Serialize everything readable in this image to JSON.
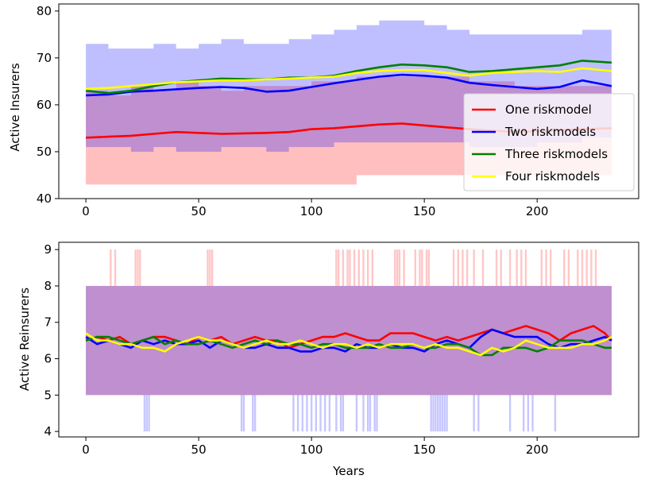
{
  "chart_data": [
    {
      "type": "line",
      "xlabel": "",
      "ylabel": "Active Insurers",
      "xlim": [
        -12,
        245
      ],
      "ylim": [
        40,
        81.5
      ],
      "xticks": [
        0,
        50,
        100,
        150,
        200
      ],
      "yticks": [
        40,
        50,
        60,
        70,
        80
      ],
      "legend_position": "right",
      "series": [
        {
          "name": "One riskmodel",
          "color": "#ff0000",
          "x": [
            0,
            10,
            20,
            30,
            40,
            50,
            60,
            70,
            80,
            90,
            100,
            110,
            120,
            130,
            140,
            150,
            160,
            170,
            180,
            190,
            200,
            210,
            220,
            233
          ],
          "y": [
            53.0,
            53.2,
            53.4,
            53.8,
            54.2,
            54.0,
            53.8,
            53.9,
            54.0,
            54.2,
            54.8,
            55.0,
            55.4,
            55.8,
            56.0,
            55.6,
            55.2,
            54.8,
            54.5,
            54.2,
            54.4,
            54.6,
            54.8,
            55.0
          ],
          "band_lower": [
            43,
            43,
            43,
            43,
            43,
            43,
            43,
            43,
            43,
            43,
            43,
            43,
            45,
            45,
            45,
            45,
            45,
            45,
            45,
            45,
            45,
            45,
            45,
            45
          ],
          "band_upper": [
            63,
            62,
            64,
            63,
            65,
            64,
            63,
            64,
            64,
            64,
            65,
            65,
            66,
            66,
            66,
            66,
            66,
            65,
            65,
            64,
            64,
            64,
            64,
            64
          ]
        },
        {
          "name": "Two riskmodels",
          "color": "#0000ff",
          "x": [
            0,
            10,
            20,
            30,
            40,
            50,
            60,
            70,
            80,
            90,
            100,
            110,
            120,
            130,
            140,
            150,
            160,
            170,
            180,
            190,
            200,
            210,
            220,
            233
          ],
          "y": [
            62.0,
            62.2,
            62.8,
            63.0,
            63.3,
            63.6,
            63.8,
            63.6,
            62.8,
            63.0,
            63.8,
            64.6,
            65.3,
            66.0,
            66.4,
            66.2,
            65.8,
            64.7,
            64.2,
            63.8,
            63.4,
            63.8,
            65.2,
            64.0
          ],
          "band_lower": [
            51,
            51,
            50,
            51,
            50,
            50,
            51,
            51,
            50,
            51,
            51,
            52,
            52,
            52,
            52,
            52,
            52,
            51,
            51,
            51,
            52,
            52,
            53,
            53
          ],
          "band_upper": [
            73,
            72,
            72,
            73,
            72,
            73,
            74,
            73,
            73,
            74,
            75,
            76,
            77,
            78,
            78,
            77,
            76,
            75,
            75,
            75,
            75,
            75,
            76,
            76
          ]
        },
        {
          "name": "Three riskmodels",
          "color": "#008000",
          "x": [
            0,
            10,
            20,
            30,
            40,
            50,
            60,
            70,
            80,
            90,
            100,
            110,
            120,
            130,
            140,
            150,
            160,
            170,
            180,
            190,
            200,
            210,
            220,
            233
          ],
          "y": [
            63.0,
            62.5,
            63.0,
            64.0,
            64.8,
            65.2,
            65.6,
            65.5,
            65.4,
            65.8,
            65.8,
            66.2,
            67.2,
            68.0,
            68.6,
            68.4,
            68.0,
            67.0,
            67.2,
            67.6,
            68.0,
            68.4,
            69.4,
            69.0
          ],
          "band_lower": [],
          "band_upper": []
        },
        {
          "name": "Four riskmodels",
          "color": "#ffff00",
          "x": [
            0,
            10,
            20,
            30,
            40,
            50,
            60,
            70,
            80,
            90,
            100,
            110,
            120,
            130,
            140,
            150,
            160,
            170,
            180,
            190,
            200,
            210,
            220,
            233
          ],
          "y": [
            63.4,
            63.6,
            64.0,
            64.4,
            64.8,
            65.0,
            65.2,
            65.2,
            65.4,
            65.6,
            65.8,
            66.0,
            66.8,
            67.2,
            67.4,
            67.4,
            66.8,
            66.2,
            66.8,
            67.0,
            67.2,
            67.0,
            67.8,
            67.2
          ],
          "band_lower": [],
          "band_upper": []
        }
      ]
    },
    {
      "type": "line",
      "xlabel": "Years",
      "ylabel": "Active Reinsurers",
      "xlim": [
        -12,
        245
      ],
      "ylim": [
        3.85,
        9.2
      ],
      "xticks": [
        0,
        50,
        100,
        150,
        200
      ],
      "yticks": [
        4,
        5,
        6,
        7,
        8,
        9
      ],
      "legend_position": "none",
      "band": {
        "lower": 5,
        "upper": 8,
        "x_start": 0,
        "x_end": 233
      },
      "spikes_up": [
        11,
        13,
        22,
        23,
        24,
        54,
        55,
        56,
        111,
        112,
        114,
        116,
        117,
        119,
        121,
        123,
        125,
        127,
        137,
        138,
        139,
        141,
        146,
        148,
        149,
        151,
        152,
        163,
        165,
        167,
        169,
        172,
        176,
        182,
        184,
        188,
        191,
        193,
        195,
        202,
        204,
        206,
        212,
        214,
        218,
        220,
        222,
        224,
        226
      ],
      "spikes_down": [
        26,
        27,
        28,
        69,
        70,
        74,
        75,
        92,
        94,
        96,
        98,
        100,
        102,
        104,
        106,
        108,
        111,
        113,
        114,
        120,
        123,
        125,
        126,
        128,
        129,
        153,
        154,
        155,
        156,
        157,
        158,
        159,
        160,
        172,
        174,
        188,
        194,
        196,
        198,
        208
      ],
      "series": [
        {
          "name": "One riskmodel",
          "color": "#ff0000",
          "x": [
            0,
            5,
            10,
            15,
            20,
            25,
            30,
            35,
            40,
            45,
            50,
            55,
            60,
            65,
            70,
            75,
            80,
            85,
            90,
            95,
            100,
            105,
            110,
            115,
            120,
            125,
            130,
            135,
            140,
            145,
            150,
            155,
            160,
            165,
            170,
            175,
            180,
            185,
            190,
            195,
            200,
            205,
            210,
            215,
            220,
            225,
            230,
            233
          ],
          "y": [
            6.5,
            6.6,
            6.5,
            6.6,
            6.4,
            6.5,
            6.6,
            6.6,
            6.5,
            6.4,
            6.6,
            6.5,
            6.6,
            6.4,
            6.5,
            6.6,
            6.5,
            6.5,
            6.3,
            6.4,
            6.5,
            6.6,
            6.6,
            6.7,
            6.6,
            6.5,
            6.5,
            6.7,
            6.7,
            6.7,
            6.6,
            6.5,
            6.6,
            6.5,
            6.6,
            6.7,
            6.8,
            6.7,
            6.8,
            6.9,
            6.8,
            6.7,
            6.5,
            6.7,
            6.8,
            6.9,
            6.7,
            6.5
          ]
        },
        {
          "name": "Two riskmodels",
          "color": "#0000ff",
          "x": [
            0,
            5,
            10,
            15,
            20,
            25,
            30,
            35,
            40,
            45,
            50,
            55,
            60,
            65,
            70,
            75,
            80,
            85,
            90,
            95,
            100,
            105,
            110,
            115,
            120,
            125,
            130,
            135,
            140,
            145,
            150,
            155,
            160,
            165,
            170,
            175,
            180,
            185,
            190,
            195,
            200,
            205,
            210,
            215,
            220,
            225,
            230,
            233
          ],
          "y": [
            6.6,
            6.4,
            6.5,
            6.4,
            6.3,
            6.5,
            6.4,
            6.5,
            6.4,
            6.4,
            6.5,
            6.3,
            6.5,
            6.4,
            6.3,
            6.3,
            6.4,
            6.3,
            6.3,
            6.2,
            6.2,
            6.3,
            6.3,
            6.2,
            6.4,
            6.3,
            6.3,
            6.4,
            6.3,
            6.3,
            6.2,
            6.4,
            6.5,
            6.4,
            6.3,
            6.6,
            6.8,
            6.7,
            6.6,
            6.6,
            6.6,
            6.4,
            6.3,
            6.4,
            6.4,
            6.5,
            6.6,
            6.5
          ]
        },
        {
          "name": "Three riskmodels",
          "color": "#008000",
          "x": [
            0,
            5,
            10,
            15,
            20,
            25,
            30,
            35,
            40,
            45,
            50,
            55,
            60,
            65,
            70,
            75,
            80,
            85,
            90,
            95,
            100,
            105,
            110,
            115,
            120,
            125,
            130,
            135,
            140,
            145,
            150,
            155,
            160,
            165,
            170,
            175,
            180,
            185,
            190,
            195,
            200,
            205,
            210,
            215,
            220,
            225,
            230,
            233
          ],
          "y": [
            6.5,
            6.6,
            6.6,
            6.5,
            6.4,
            6.5,
            6.6,
            6.4,
            6.5,
            6.4,
            6.4,
            6.5,
            6.4,
            6.3,
            6.4,
            6.5,
            6.4,
            6.5,
            6.4,
            6.4,
            6.3,
            6.4,
            6.4,
            6.3,
            6.3,
            6.3,
            6.4,
            6.3,
            6.3,
            6.4,
            6.3,
            6.3,
            6.4,
            6.4,
            6.3,
            6.1,
            6.1,
            6.3,
            6.3,
            6.3,
            6.2,
            6.3,
            6.5,
            6.5,
            6.5,
            6.4,
            6.3,
            6.3
          ]
        },
        {
          "name": "Four riskmodels",
          "color": "#ffff00",
          "x": [
            0,
            5,
            10,
            15,
            20,
            25,
            30,
            35,
            40,
            45,
            50,
            55,
            60,
            65,
            70,
            75,
            80,
            85,
            90,
            95,
            100,
            105,
            110,
            115,
            120,
            125,
            130,
            135,
            140,
            145,
            150,
            155,
            160,
            165,
            170,
            175,
            180,
            185,
            190,
            195,
            200,
            205,
            210,
            215,
            220,
            225,
            230,
            233
          ],
          "y": [
            6.7,
            6.5,
            6.5,
            6.4,
            6.4,
            6.3,
            6.3,
            6.2,
            6.4,
            6.5,
            6.6,
            6.5,
            6.5,
            6.4,
            6.3,
            6.4,
            6.5,
            6.4,
            6.4,
            6.5,
            6.4,
            6.3,
            6.4,
            6.4,
            6.3,
            6.4,
            6.3,
            6.4,
            6.4,
            6.4,
            6.3,
            6.4,
            6.3,
            6.3,
            6.2,
            6.1,
            6.3,
            6.2,
            6.3,
            6.5,
            6.4,
            6.3,
            6.3,
            6.3,
            6.4,
            6.4,
            6.5,
            6.6
          ]
        }
      ]
    }
  ]
}
